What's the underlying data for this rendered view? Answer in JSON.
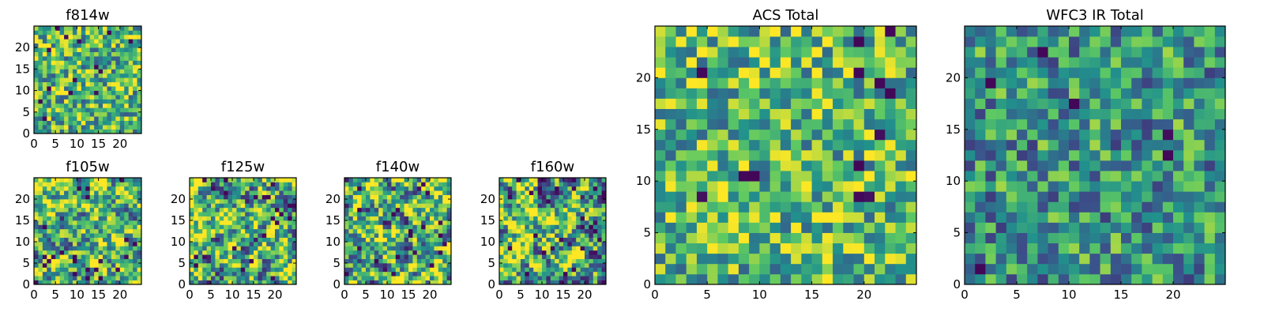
{
  "figure": {
    "colormap": "viridis",
    "colormap_stops": [
      "#440154",
      "#3b528b",
      "#21918c",
      "#5ec962",
      "#fde725"
    ],
    "background": "#ffffff"
  },
  "chart_data": [
    {
      "id": "f814w",
      "type": "heatmap",
      "title": "f814w",
      "grid_size": [
        25,
        25
      ],
      "xlim": [
        0,
        25
      ],
      "ylim": [
        0,
        25
      ],
      "xticks": [
        0,
        5,
        10,
        15,
        20
      ],
      "xtick_labels": [
        "0",
        "5",
        "10",
        "15",
        "20"
      ],
      "yticks": [
        0,
        5,
        10,
        15,
        20
      ],
      "ytick_labels": [
        "0",
        "5",
        "10",
        "15",
        "20"
      ],
      "value_range": [
        0,
        1
      ],
      "seed": 11,
      "base": 0.66,
      "spread": 0.38,
      "smooth": 0,
      "dark_fraction": 0.035
    },
    {
      "id": "f105w",
      "type": "heatmap",
      "title": "f105w",
      "grid_size": [
        25,
        25
      ],
      "xlim": [
        0,
        25
      ],
      "ylim": [
        0,
        25
      ],
      "xticks": [
        0,
        5,
        10,
        15,
        20
      ],
      "xtick_labels": [
        "0",
        "5",
        "10",
        "15",
        "20"
      ],
      "yticks": [
        0,
        5,
        10,
        15,
        20
      ],
      "ytick_labels": [
        "0",
        "5",
        "10",
        "15",
        "20"
      ],
      "value_range": [
        0,
        1
      ],
      "seed": 23,
      "base": 0.68,
      "spread": 0.55,
      "smooth": 1,
      "dark_fraction": 0.03
    },
    {
      "id": "f125w",
      "type": "heatmap",
      "title": "f125w",
      "grid_size": [
        25,
        25
      ],
      "xlim": [
        0,
        25
      ],
      "ylim": [
        0,
        25
      ],
      "xticks": [
        0,
        5,
        10,
        15,
        20
      ],
      "xtick_labels": [
        "0",
        "5",
        "10",
        "15",
        "20"
      ],
      "yticks": [
        0,
        5,
        10,
        15,
        20
      ],
      "ytick_labels": [
        "0",
        "5",
        "10",
        "15",
        "20"
      ],
      "value_range": [
        0,
        1
      ],
      "seed": 37,
      "base": 0.64,
      "spread": 0.6,
      "smooth": 1,
      "dark_fraction": 0.035
    },
    {
      "id": "f140w",
      "type": "heatmap",
      "title": "f140w",
      "grid_size": [
        25,
        25
      ],
      "xlim": [
        0,
        25
      ],
      "ylim": [
        0,
        25
      ],
      "xticks": [
        0,
        5,
        10,
        15,
        20
      ],
      "xtick_labels": [
        "0",
        "5",
        "10",
        "15",
        "20"
      ],
      "yticks": [
        0,
        5,
        10,
        15,
        20
      ],
      "ytick_labels": [
        "0",
        "5",
        "10",
        "15",
        "20"
      ],
      "value_range": [
        0,
        1
      ],
      "seed": 41,
      "base": 0.64,
      "spread": 0.62,
      "smooth": 1,
      "dark_fraction": 0.035
    },
    {
      "id": "f160w",
      "type": "heatmap",
      "title": "f160w",
      "grid_size": [
        25,
        25
      ],
      "xlim": [
        0,
        25
      ],
      "ylim": [
        0,
        25
      ],
      "xticks": [
        0,
        5,
        10,
        15,
        20
      ],
      "xtick_labels": [
        "0",
        "5",
        "10",
        "15",
        "20"
      ],
      "yticks": [
        0,
        5,
        10,
        15,
        20
      ],
      "ytick_labels": [
        "0",
        "5",
        "10",
        "15",
        "20"
      ],
      "value_range": [
        0,
        1
      ],
      "seed": 53,
      "base": 0.64,
      "spread": 0.62,
      "smooth": 1,
      "dark_fraction": 0.04
    },
    {
      "id": "acs-total",
      "type": "heatmap",
      "title": "ACS Total",
      "grid_size": [
        25,
        25
      ],
      "xlim": [
        0,
        25
      ],
      "ylim": [
        0,
        25
      ],
      "xticks": [
        0,
        5,
        10,
        15,
        20
      ],
      "xtick_labels": [
        "0",
        "5",
        "10",
        "15",
        "20"
      ],
      "yticks": [
        0,
        5,
        10,
        15,
        20
      ],
      "ytick_labels": [
        "0",
        "5",
        "10",
        "15",
        "20"
      ],
      "value_range": [
        0,
        1
      ],
      "seed": 67,
      "base": 0.68,
      "spread": 0.36,
      "smooth": 0,
      "dark_fraction": 0.02
    },
    {
      "id": "wfc3-ir-total",
      "type": "heatmap",
      "title": "WFC3 IR Total",
      "grid_size": [
        25,
        25
      ],
      "xlim": [
        0,
        25
      ],
      "ylim": [
        0,
        25
      ],
      "xticks": [
        0,
        5,
        10,
        15,
        20
      ],
      "xtick_labels": [
        "0",
        "5",
        "10",
        "15",
        "20"
      ],
      "yticks": [
        0,
        5,
        10,
        15,
        20
      ],
      "ytick_labels": [
        "0",
        "5",
        "10",
        "15",
        "20"
      ],
      "value_range": [
        0,
        1
      ],
      "seed": 79,
      "base": 0.52,
      "spread": 0.34,
      "smooth": 0,
      "dark_fraction": 0.02
    }
  ]
}
